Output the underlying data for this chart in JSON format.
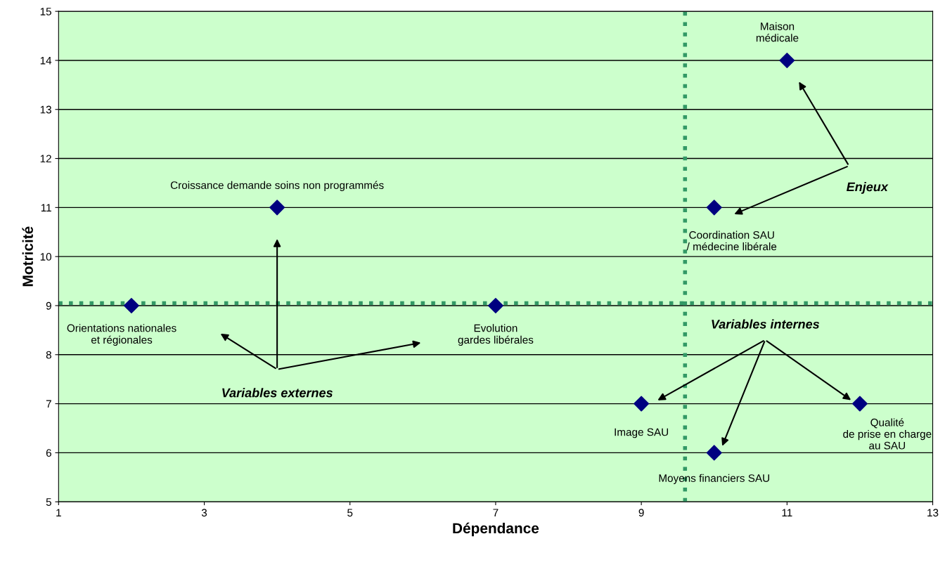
{
  "chart_data": {
    "type": "scatter",
    "xlabel": "Dépendance",
    "ylabel": "Motricité",
    "x": [
      2,
      4,
      7,
      9,
      10,
      10,
      11,
      12
    ],
    "series": [
      {
        "color": "#000080",
        "values": [
          9,
          11,
          9,
          7,
          6,
          11,
          14,
          7
        ]
      }
    ],
    "marker": "diamond",
    "xlim": [
      1,
      13
    ],
    "xticks": [
      1,
      3,
      5,
      7,
      9,
      11,
      13
    ],
    "ylim": [
      5,
      15
    ],
    "yticks": [
      5,
      6,
      7,
      8,
      9,
      10,
      11,
      12,
      13,
      14,
      15
    ],
    "grid": "y",
    "ref_lines": [
      {
        "axis": "x",
        "value": 9.6,
        "color": "#339966",
        "line_style": "dotted"
      },
      {
        "axis": "y",
        "value": 9.05,
        "color": "#339966",
        "line_style": "dotted"
      }
    ],
    "annotations": [
      {
        "text": "Orientations nationales\net régionales",
        "x": 2,
        "y": 9
      },
      {
        "text": "Croissance demande soins non programmés",
        "x": 4,
        "y": 11
      },
      {
        "text": "Evolution\ngardes libérales",
        "x": 7,
        "y": 9
      },
      {
        "text": "Image SAU",
        "x": 9,
        "y": 7
      },
      {
        "text": "Moyens financiers SAU",
        "x": 10,
        "y": 6
      },
      {
        "text": "Coordination SAU\n/ médecine libérale",
        "x": 10,
        "y": 11
      },
      {
        "text": "Maison\nmédicale",
        "x": 11,
        "y": 14
      },
      {
        "text": "Qualité\nde prise en charge\nau SAU",
        "x": 12,
        "y": 7
      },
      "Variables externes",
      "Variables internes",
      "Enjeux"
    ]
  }
}
